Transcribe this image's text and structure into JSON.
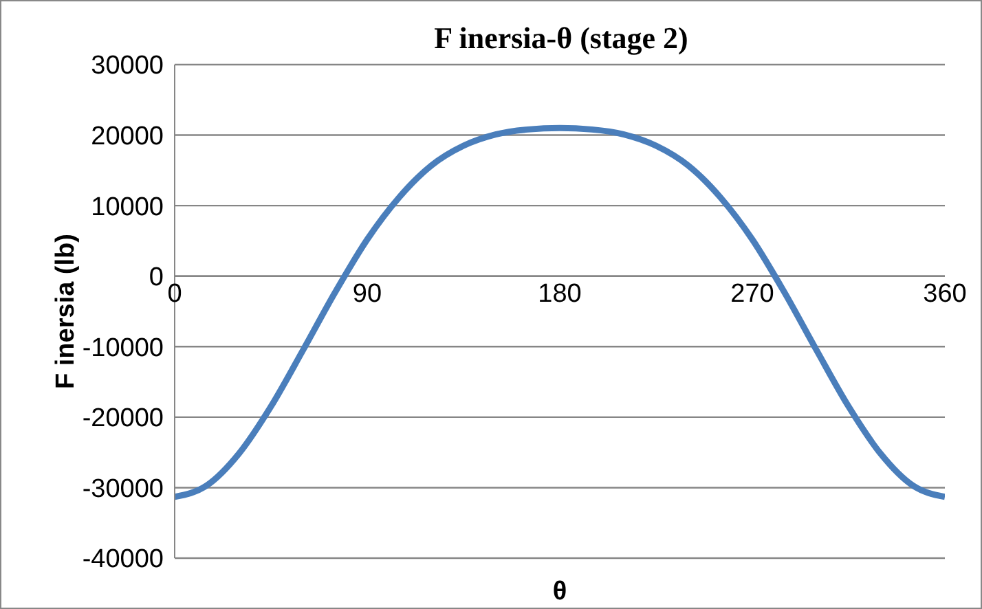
{
  "chart_data": {
    "type": "line",
    "title": "F inersia-θ (stage 2)",
    "xlabel": "θ",
    "ylabel": "F inersia (lb)",
    "x": [
      0,
      15,
      30,
      45,
      60,
      75,
      90,
      105,
      120,
      135,
      150,
      165,
      180,
      195,
      210,
      225,
      240,
      255,
      270,
      285,
      300,
      315,
      330,
      345,
      360
    ],
    "series": [
      {
        "color": "#4a7ebb",
        "values": [
          -31300,
          -29700,
          -25200,
          -18500,
          -10500,
          -2300,
          5200,
          11200,
          15700,
          18500,
          20100,
          20800,
          21000,
          20800,
          20100,
          18500,
          15700,
          11200,
          5200,
          -2300,
          -10500,
          -18500,
          -25200,
          -29700,
          -31300
        ]
      }
    ],
    "xlim": [
      0,
      360
    ],
    "xticks": [
      0,
      90,
      180,
      270,
      360
    ],
    "ylim": [
      -40000,
      30000
    ],
    "yticks": [
      -40000,
      -30000,
      -20000,
      -10000,
      0,
      10000,
      20000,
      30000
    ],
    "grid": "y",
    "marker": "none",
    "line_style": "solid"
  }
}
